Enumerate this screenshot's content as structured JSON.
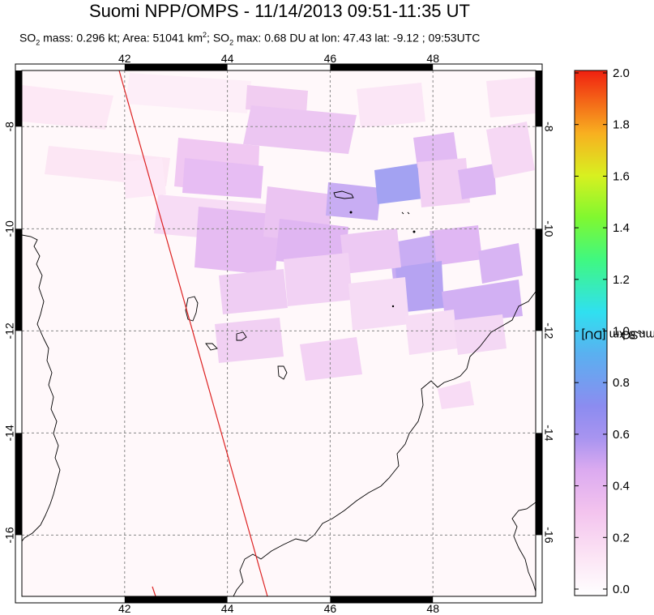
{
  "header": {
    "title": "Suomi NPP/OMPS - 11/14/2013 09:51-11:35 UT",
    "subtitle": {
      "mass_prefix": "SO",
      "mass_sub": "2",
      "mass_text": " mass: 0.296 kt; Area: 51041 km",
      "area_sup": "2",
      "max_prefix": "; SO",
      "max_sub": "2",
      "max_text": " max: 0.68 DU at lon: 47.43 lat: -9.12 ; 09:53UTC"
    }
  },
  "map": {
    "lon_range": [
      40,
      50
    ],
    "lat_range": [
      -17.2,
      -6.9
    ],
    "lon_ticks": [
      42,
      44,
      46,
      48
    ],
    "lon_tick_labels": [
      "42",
      "44",
      "46",
      "48"
    ],
    "lat_ticks": [
      -8,
      -10,
      -12,
      -14,
      -16
    ],
    "lat_tick_labels": [
      "-8",
      "-10",
      "-12",
      "-14",
      "-16"
    ],
    "grid": true,
    "grid_color": "#888888",
    "orbit_track_color": "#dd2222",
    "coast_color": "#000000"
  },
  "colorbar": {
    "label_prefix": "SO",
    "label_sub": "2",
    "label_suffix": " column 8 km [DU]",
    "range": [
      0.0,
      2.0
    ],
    "tick_labels": [
      "2.0",
      "1.8",
      "1.6",
      "1.4",
      "1.2",
      "1.0",
      "0.8",
      "0.6",
      "0.4",
      "0.2",
      "0.0"
    ],
    "stops": [
      "#fff8f8",
      "#f8c8f0",
      "#d8a8f0",
      "#8c8cf0",
      "#30d8f0",
      "#40ff60",
      "#c8f020",
      "#f8a020",
      "#f02010"
    ]
  }
}
